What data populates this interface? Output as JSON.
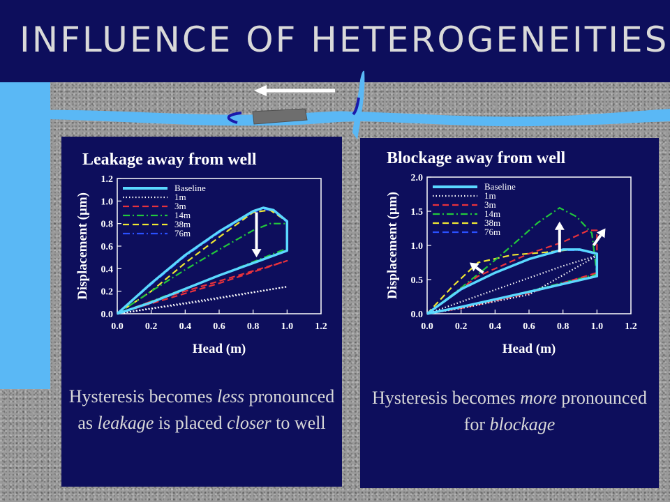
{
  "slide": {
    "title": "INFLUENCE OF HETEROGENEITIES",
    "colors": {
      "background_bar": "#0d0e5c",
      "accent_stripe": "#5ab8f5",
      "title_text": "#d9d9d9"
    },
    "illustration": {
      "description_icons": [
        "pipe",
        "left-arrow-icon",
        "curved-arrow-icon",
        "plug-icon"
      ]
    }
  },
  "left": {
    "title": "Leakage away from well",
    "caption_parts": [
      {
        "t": "Hysteresis becomes ",
        "i": false
      },
      {
        "t": "less",
        "i": true
      },
      {
        "t": " pronounced as ",
        "i": false
      },
      {
        "t": "leakage",
        "i": true
      },
      {
        "t": " is placed ",
        "i": false
      },
      {
        "t": "closer",
        "i": true
      },
      {
        "t": " to well",
        "i": false
      }
    ]
  },
  "right": {
    "title": "Blockage away from well",
    "caption_parts": [
      {
        "t": "Hysteresis becomes ",
        "i": false
      },
      {
        "t": "more",
        "i": true
      },
      {
        "t": " pronounced for ",
        "i": false
      },
      {
        "t": "blockage",
        "i": true
      }
    ]
  },
  "chart_data": [
    {
      "type": "line",
      "xlabel": "Head (m)",
      "ylabel": "Displacement (µm)",
      "xlim": [
        0,
        1.2
      ],
      "ylim": [
        0,
        1.2
      ],
      "xticks": [
        "0.0",
        "0.2",
        "0.4",
        "0.6",
        "0.8",
        "1.0",
        "1.2"
      ],
      "yticks": [
        "0.0",
        "0.2",
        "0.4",
        "0.6",
        "0.8",
        "1.0",
        "1.2"
      ],
      "legend_position": "top-left",
      "annotation": "downward arrow at Head ≈ 0.82 from ≈ 0.9 to ≈ 0.52",
      "series": [
        {
          "name": "Baseline",
          "color": "#5ad8ff",
          "style": "solid",
          "load": [
            [
              0,
              0
            ],
            [
              0.2,
              0.27
            ],
            [
              0.4,
              0.52
            ],
            [
              0.6,
              0.73
            ],
            [
              0.8,
              0.91
            ],
            [
              0.86,
              0.94
            ],
            [
              0.92,
              0.92
            ],
            [
              1.0,
              0.82
            ],
            [
              1.0,
              0.56
            ]
          ],
          "unload": [
            [
              1.0,
              0.56
            ],
            [
              0.8,
              0.45
            ],
            [
              0.6,
              0.34
            ],
            [
              0.4,
              0.22
            ],
            [
              0.2,
              0.1
            ],
            [
              0,
              0
            ]
          ]
        },
        {
          "name": "1m",
          "color": "#ffffff",
          "style": "dotted",
          "load": [
            [
              0,
              0
            ],
            [
              0.5,
              0.12
            ],
            [
              1.0,
              0.24
            ]
          ],
          "unload": [
            [
              1.0,
              0.24
            ],
            [
              0.5,
              0.11
            ],
            [
              0,
              0
            ]
          ]
        },
        {
          "name": "3m",
          "color": "#e8323c",
          "style": "dashed",
          "load": [
            [
              0,
              0
            ],
            [
              0.2,
              0.11
            ],
            [
              0.4,
              0.2
            ],
            [
              0.6,
              0.29
            ],
            [
              0.8,
              0.38
            ],
            [
              1.0,
              0.47
            ]
          ],
          "unload": [
            [
              1.0,
              0.45
            ],
            [
              0.6,
              0.27
            ],
            [
              0.2,
              0.09
            ],
            [
              0,
              0
            ]
          ]
        },
        {
          "name": "14m",
          "color": "#22c83c",
          "style": "dashdot",
          "load": [
            [
              0,
              0
            ],
            [
              0.2,
              0.2
            ],
            [
              0.4,
              0.39
            ],
            [
              0.6,
              0.57
            ],
            [
              0.8,
              0.74
            ],
            [
              0.9,
              0.8
            ],
            [
              1.0,
              0.8
            ],
            [
              1.0,
              0.58
            ]
          ],
          "unload": [
            [
              1.0,
              0.58
            ],
            [
              0.6,
              0.34
            ],
            [
              0.2,
              0.11
            ],
            [
              0,
              0
            ]
          ]
        },
        {
          "name": "38m",
          "color": "#f0e832",
          "style": "dashed",
          "load": [
            [
              0,
              0
            ],
            [
              0.2,
              0.2
            ],
            [
              0.4,
              0.45
            ],
            [
              0.6,
              0.68
            ],
            [
              0.8,
              0.9
            ],
            [
              0.9,
              0.92
            ],
            [
              1.0,
              0.82
            ],
            [
              1.0,
              0.56
            ]
          ],
          "unload": [
            [
              1.0,
              0.56
            ],
            [
              0.6,
              0.34
            ],
            [
              0.2,
              0.1
            ],
            [
              0,
              0
            ]
          ]
        },
        {
          "name": "76m",
          "color": "#2a50ff",
          "style": "dashdot",
          "load": [
            [
              0,
              0
            ],
            [
              0.2,
              0.26
            ],
            [
              0.4,
              0.51
            ],
            [
              0.6,
              0.72
            ],
            [
              0.8,
              0.9
            ],
            [
              0.86,
              0.93
            ],
            [
              0.92,
              0.91
            ],
            [
              1.0,
              0.81
            ],
            [
              1.0,
              0.56
            ]
          ],
          "unload": [
            [
              1.0,
              0.56
            ],
            [
              0.6,
              0.34
            ],
            [
              0.2,
              0.1
            ],
            [
              0,
              0
            ]
          ]
        }
      ]
    },
    {
      "type": "line",
      "xlabel": "Head (m)",
      "ylabel": "Displacement (µm)",
      "xlim": [
        0,
        1.2
      ],
      "ylim": [
        0,
        2.0
      ],
      "xticks": [
        "0.0",
        "0.2",
        "0.4",
        "0.6",
        "0.8",
        "1.0",
        "1.2"
      ],
      "yticks": [
        "0.0",
        "0.5",
        "1.0",
        "1.5",
        "2.0"
      ],
      "legend_position": "top-left",
      "annotation": "upward arrows near Head ≈ 0.3, 0.78 and 0.98",
      "series": [
        {
          "name": "Baseline",
          "color": "#5ad8ff",
          "style": "solid",
          "load": [
            [
              0,
              0
            ],
            [
              0.2,
              0.36
            ],
            [
              0.4,
              0.6
            ],
            [
              0.6,
              0.8
            ],
            [
              0.8,
              0.94
            ],
            [
              0.9,
              0.94
            ],
            [
              1.0,
              0.88
            ],
            [
              1.0,
              0.55
            ]
          ],
          "unload": [
            [
              1.0,
              0.55
            ],
            [
              0.6,
              0.32
            ],
            [
              0.2,
              0.1
            ],
            [
              0,
              0
            ]
          ]
        },
        {
          "name": "1m",
          "color": "#ffffff",
          "style": "dotted",
          "load": [
            [
              0,
              0
            ],
            [
              0.4,
              0.35
            ],
            [
              0.8,
              0.7
            ],
            [
              1.0,
              0.85
            ]
          ],
          "unload": [
            [
              1.0,
              0.5
            ],
            [
              0.6,
              0.28
            ],
            [
              0.2,
              0.08
            ],
            [
              0,
              0
            ]
          ]
        },
        {
          "name": "3m",
          "color": "#e8323c",
          "style": "dashed",
          "load": [
            [
              0,
              0
            ],
            [
              0.3,
              0.55
            ],
            [
              0.6,
              0.88
            ],
            [
              0.8,
              1.05
            ],
            [
              0.95,
              1.22
            ],
            [
              1.0,
              1.22
            ],
            [
              1.0,
              0.6
            ]
          ],
          "unload": [
            [
              1.0,
              0.6
            ],
            [
              0.6,
              0.3
            ],
            [
              0.2,
              0.08
            ],
            [
              0,
              0
            ]
          ]
        },
        {
          "name": "14m",
          "color": "#22c83c",
          "style": "dashdot",
          "load": [
            [
              0,
              0
            ],
            [
              0.2,
              0.38
            ],
            [
              0.35,
              0.68
            ],
            [
              0.5,
              1.0
            ],
            [
              0.65,
              1.33
            ],
            [
              0.78,
              1.55
            ],
            [
              0.88,
              1.42
            ],
            [
              0.97,
              1.18
            ],
            [
              1.0,
              0.58
            ]
          ],
          "unload": [
            [
              1.0,
              0.58
            ],
            [
              0.6,
              0.33
            ],
            [
              0.2,
              0.1
            ],
            [
              0,
              0
            ]
          ]
        },
        {
          "name": "38m",
          "color": "#f0e832",
          "style": "dashed",
          "load": [
            [
              0,
              0
            ],
            [
              0.15,
              0.4
            ],
            [
              0.3,
              0.75
            ],
            [
              0.5,
              0.86
            ],
            [
              0.7,
              0.9
            ],
            [
              0.85,
              0.94
            ],
            [
              0.95,
              0.92
            ],
            [
              1.0,
              0.88
            ],
            [
              1.0,
              0.56
            ]
          ],
          "unload": [
            [
              1.0,
              0.56
            ],
            [
              0.6,
              0.32
            ],
            [
              0.2,
              0.1
            ],
            [
              0,
              0
            ]
          ]
        },
        {
          "name": "76m",
          "color": "#2a50ff",
          "style": "dashed",
          "load": [
            [
              0,
              0
            ],
            [
              0.2,
              0.35
            ],
            [
              0.4,
              0.6
            ],
            [
              0.6,
              0.8
            ],
            [
              0.8,
              0.93
            ],
            [
              0.9,
              0.93
            ],
            [
              1.0,
              0.87
            ],
            [
              1.0,
              0.55
            ]
          ],
          "unload": [
            [
              1.0,
              0.55
            ],
            [
              0.6,
              0.32
            ],
            [
              0.2,
              0.1
            ],
            [
              0,
              0
            ]
          ]
        }
      ]
    }
  ]
}
